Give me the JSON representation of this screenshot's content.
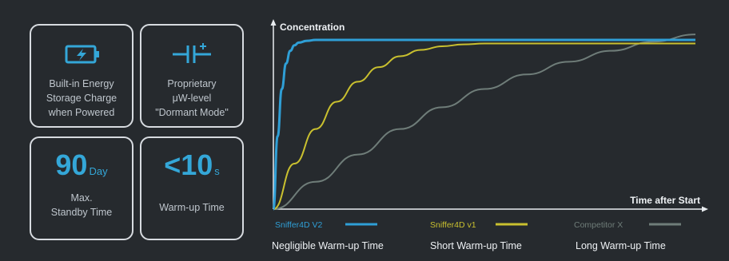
{
  "cards": [
    {
      "icon": "battery-charging-icon",
      "text": "Built-in Energy\nStorage Charge\nwhen Powered"
    },
    {
      "icon": "capacitor-icon",
      "text": "Proprietary\nμW-level\n\"Dormant Mode\""
    },
    {
      "value": "90",
      "unit": "Day",
      "text": "Max.\nStandby Time"
    },
    {
      "value": "<10",
      "unit": "s",
      "text": "Warm-up Time"
    }
  ],
  "colors": {
    "accent": "#34a7d8",
    "v2": "#2f9fd6",
    "v1": "#c9c02f",
    "competitor": "#6f7d79"
  },
  "chart_data": {
    "type": "line",
    "ylabel": "Concentration",
    "xlabel": "Time after Start",
    "xlim": [
      0,
      100
    ],
    "ylim": [
      0,
      100
    ],
    "grid": false,
    "legend_placement": "bottom",
    "series": [
      {
        "name": "Sniffer4D V2",
        "description": "Negligible Warm-up Time",
        "x": [
          0,
          1,
          2,
          3,
          4,
          5,
          6,
          8,
          10,
          12,
          15,
          20,
          30,
          50,
          75,
          100
        ],
        "y": [
          0,
          40,
          66,
          80,
          87,
          90,
          91.5,
          92.5,
          93,
          93,
          93,
          93,
          93,
          93,
          93,
          93
        ]
      },
      {
        "name": "Sniffer4D v1",
        "description": "Short Warm-up Time",
        "x": [
          0,
          5,
          10,
          15,
          20,
          25,
          30,
          35,
          40,
          45,
          50,
          60,
          80,
          100
        ],
        "y": [
          0,
          25,
          44,
          59,
          70,
          78,
          84,
          87.5,
          89.5,
          90.5,
          91,
          91,
          91,
          91
        ]
      },
      {
        "name": "Competitor X",
        "description": "Long Warm-up Time",
        "x": [
          0,
          10,
          20,
          30,
          40,
          50,
          60,
          70,
          80,
          90,
          100
        ],
        "y": [
          0,
          15,
          30,
          44,
          56,
          66,
          74,
          81,
          87,
          92,
          96
        ]
      }
    ]
  }
}
